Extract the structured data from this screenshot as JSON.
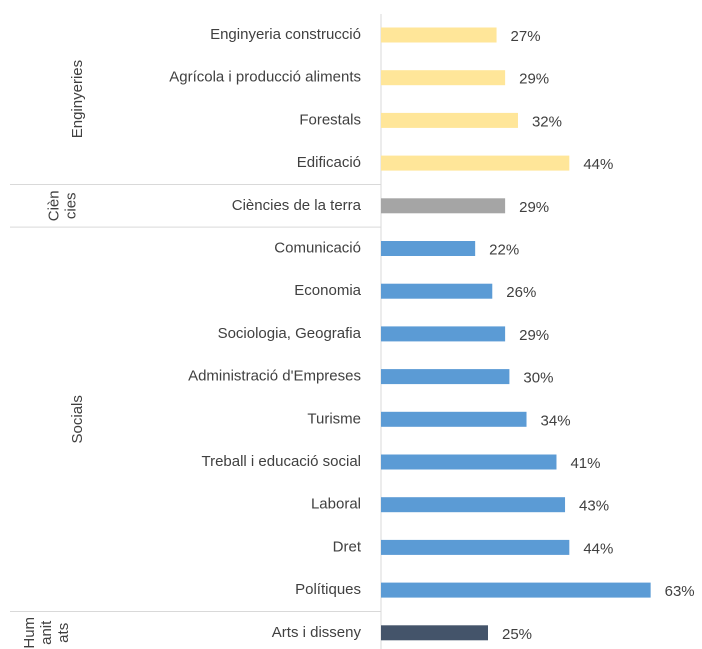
{
  "chart_data": {
    "type": "bar",
    "orientation": "horizontal",
    "groups": [
      {
        "lines": [
          "Enginyeries"
        ],
        "color": "#ffe699",
        "categories": [
          "Enginyeria construcció",
          "Agrícola i producció aliments",
          "Forestals",
          "Edificació"
        ],
        "values": [
          27,
          29,
          32,
          44
        ],
        "value_labels": [
          "27%",
          "29%",
          "32%",
          "44%"
        ]
      },
      {
        "lines": [
          "Cièn",
          "cies"
        ],
        "color": "#a5a5a5",
        "categories": [
          "Ciències de la terra"
        ],
        "values": [
          29
        ],
        "value_labels": [
          "29%"
        ]
      },
      {
        "lines": [
          "Socials"
        ],
        "color": "#5b9bd5",
        "categories": [
          "Comunicació",
          "Economia",
          "Sociologia, Geografia",
          "Administració d'Empreses",
          "Turisme",
          "Treball i educació social",
          "Laboral",
          "Dret",
          "Polítiques"
        ],
        "values": [
          22,
          26,
          29,
          30,
          34,
          41,
          43,
          44,
          63
        ],
        "value_labels": [
          "22%",
          "26%",
          "29%",
          "30%",
          "34%",
          "41%",
          "43%",
          "44%",
          "63%"
        ]
      },
      {
        "lines": [
          "Hum",
          "anit",
          "ats"
        ],
        "color": "#44546a",
        "categories": [
          "Arts i disseny"
        ],
        "values": [
          25
        ],
        "value_labels": [
          "25%"
        ]
      }
    ]
  }
}
